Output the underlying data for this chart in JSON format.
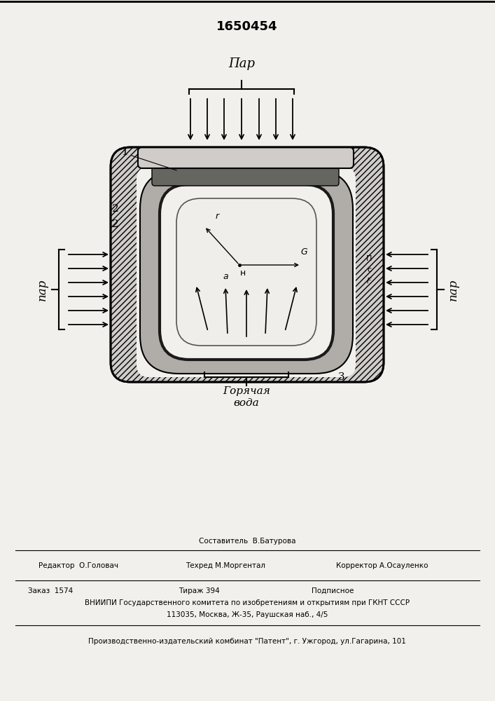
{
  "patent_number": "1650454",
  "top_label": "Пар",
  "left_label": "пар",
  "right_label": "пар",
  "bottom_label1": "Горячая",
  "bottom_label2": "вода",
  "editor_line": "Редактор  О.Головач",
  "sestavitel_line": "Составитель  В.Батурова",
  "tech_line": "Техред М.Моргентал",
  "corrector_line": "Корректор А.Осауленко",
  "order_line": "Заказ  1574",
  "tirazh_line": "Тираж 394",
  "podpisnoe_line": "Подписное",
  "vniipи_line1": "ВНИИПИ Государственного комитета по изобретениям и открытиям при ГКНТ СССР",
  "vniipи_line2": "113035, Москва, Ж-35, Раушская наб., 4/5",
  "kombinat_line": "Производственно-издательский комбинат \"Патент\", г. Ужгород, ул.Гагарина, 101",
  "bg_color": "#f2f0ed"
}
